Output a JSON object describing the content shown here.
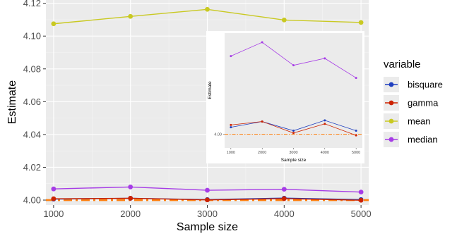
{
  "chart_data": [
    {
      "type": "line",
      "xlabel": "Sample size",
      "ylabel": "Estimate",
      "x": [
        1000,
        2000,
        3000,
        4000,
        5000
      ],
      "xticks": [
        "1000",
        "2000",
        "3000",
        "4000",
        "5000"
      ],
      "ylim": [
        3.997,
        4.122
      ],
      "yticks": [
        "4.00",
        "4.02",
        "4.04",
        "4.06",
        "4.08",
        "4.10",
        "4.12"
      ],
      "ytick_values": [
        4.0,
        4.02,
        4.04,
        4.06,
        4.08,
        4.1,
        4.12
      ],
      "grid": true,
      "legend": {
        "title": "variable",
        "position": "right",
        "entries": [
          "bisquare",
          "gamma",
          "mean",
          "median"
        ]
      },
      "reference_line": {
        "y": 4.0,
        "style": "dash-dot",
        "color": "#ff7f0e"
      },
      "series": [
        {
          "name": "bisquare",
          "color": "#1f3fbf",
          "values": [
            4.0006,
            4.0011,
            4.0003,
            4.0012,
            4.0003
          ]
        },
        {
          "name": "gamma",
          "color": "#cc2200",
          "values": [
            4.0008,
            4.0011,
            4.0001,
            4.0009,
            3.9999
          ]
        },
        {
          "name": "mean",
          "color": "#c9c922",
          "values": [
            4.1075,
            4.112,
            4.1163,
            4.1098,
            4.1083
          ]
        },
        {
          "name": "median",
          "color": "#a63ce6",
          "values": [
            4.0068,
            4.008,
            4.006,
            4.0066,
            4.0049
          ]
        }
      ]
    },
    {
      "type": "line",
      "inset": true,
      "xlabel": "Sample size",
      "ylabel": "Estimate",
      "x": [
        1000,
        2000,
        3000,
        4000,
        5000
      ],
      "xticks": [
        "1000",
        "2000",
        "3000",
        "4000",
        "5000"
      ],
      "yticks": [
        "4.00"
      ],
      "ytick_values": [
        4.0
      ],
      "ylim": [
        3.9988,
        4.0088
      ],
      "grid": false,
      "reference_line": {
        "y": 4.0,
        "style": "dash-dot",
        "color": "#ff7f0e"
      },
      "series": [
        {
          "name": "bisquare",
          "color": "#1f3fbf",
          "values": [
            4.0006,
            4.0011,
            4.0003,
            4.0012,
            4.0003
          ]
        },
        {
          "name": "gamma",
          "color": "#cc2200",
          "values": [
            4.0008,
            4.0011,
            4.0001,
            4.0009,
            3.9999
          ]
        },
        {
          "name": "median",
          "color": "#a63ce6",
          "values": [
            4.0068,
            4.008,
            4.006,
            4.0066,
            4.0049
          ]
        }
      ]
    }
  ]
}
